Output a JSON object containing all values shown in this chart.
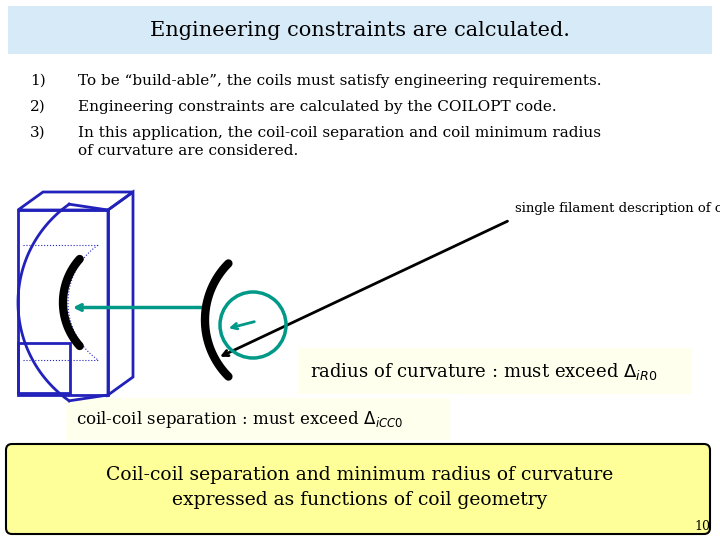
{
  "title": "Engineering constraints are calculated.",
  "title_bg": "#d6eaf8",
  "item1": "To be “build-able”, the coils must satisfy engineering requirements.",
  "item2": "Engineering constraints are calculated by the COILOPT code.",
  "item3a": "In this application, the coil-coil separation and coil minimum radius",
  "item3b": "of curvature are considered.",
  "annotation_label": "single filament description of coils",
  "radius_text": "radius of curvature : must exceed Δ",
  "radius_sub": "iR0",
  "separation_text": "coil-coil separation : must exceed Δ",
  "separation_sub": "iCC0",
  "bottom_text1": "Coil-coil separation and minimum radius of curvature",
  "bottom_text2": "expressed as functions of coil geometry",
  "bottom_bg": "#ffff99",
  "yellow_bg": "#ffffee",
  "page_num": "10",
  "bg_color": "#ffffff",
  "blue_color": "#2222bb",
  "teal_color": "#009988",
  "black_color": "#000000"
}
